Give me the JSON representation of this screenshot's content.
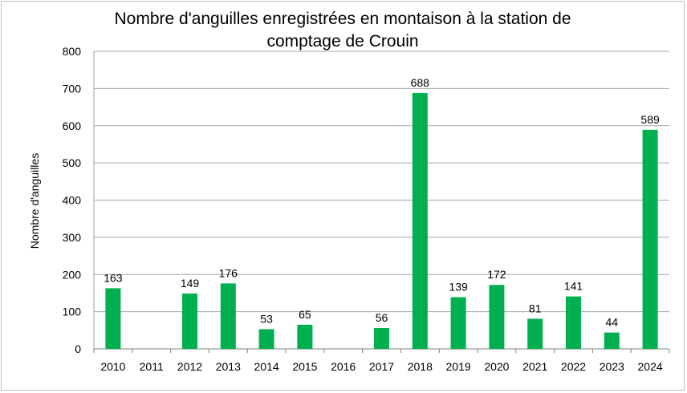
{
  "chart_data": {
    "type": "bar",
    "title": "Nombre d'anguilles enregistrées en montaison à la station de comptage de Crouin",
    "xlabel": "",
    "ylabel": "Nombre d'anguilles",
    "ylim": [
      0,
      800
    ],
    "yticks": [
      0,
      100,
      200,
      300,
      400,
      500,
      600,
      700,
      800
    ],
    "grid": true,
    "legend": "none",
    "bar_color": "#00b050",
    "categories": [
      "2010",
      "2011",
      "2012",
      "2013",
      "2014",
      "2015",
      "2016",
      "2017",
      "2018",
      "2019",
      "2020",
      "2021",
      "2022",
      "2023",
      "2024"
    ],
    "values": [
      163,
      null,
      149,
      176,
      53,
      65,
      null,
      56,
      688,
      139,
      172,
      81,
      141,
      44,
      589
    ],
    "data_labels": [
      "163",
      "",
      "149",
      "176",
      "53",
      "65",
      "",
      "56",
      "688",
      "139",
      "172",
      "81",
      "141",
      "44",
      "589"
    ]
  }
}
